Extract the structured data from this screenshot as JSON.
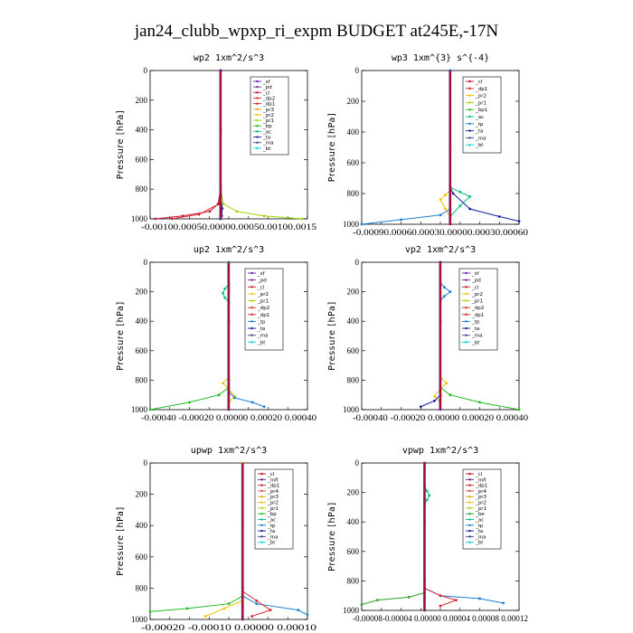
{
  "title": "jan24_clubb_wpxp_ri_expm  BUDGET at245E,-17N",
  "colors": {
    "sf": "#6a1fc0",
    "pd": "#7a1fa0",
    "cl": "#c8102e",
    "dp2": "#e03010",
    "dp1": "#d8202a",
    "pr3": "#f0a000",
    "pr2": "#f2c200",
    "pr1": "#9ad800",
    "bp": "#22bb22",
    "ac": "#00bb88",
    "tp": "#1a7fd0",
    "ta": "#1020a0",
    "ma": "#444488",
    "bt": "#00d8d8",
    "mfl": "#5a2080",
    "pr4": "#e84040",
    "be": "#2ca02c"
  },
  "chart_data": [
    {
      "type": "line",
      "title": "wp2  1xm^2/s^3",
      "ylabel": "Pressure [hPa]",
      "xlim": [
        -0.0013,
        0.0016
      ],
      "ylim": [
        1000,
        0
      ],
      "yticks": [
        0,
        200,
        400,
        600,
        800,
        1000
      ],
      "xtick_text": "-0.00100.00050.00000.00050.00100.0015",
      "legend": [
        "_sf",
        "_pd",
        "_cl",
        "_dp2",
        "_dp1",
        "_pr3",
        "_pr2",
        "_pr1",
        "_bp",
        "_ac",
        "_ta",
        "_ma",
        "_bt"
      ],
      "series": [
        {
          "name": "_sf",
          "color_key": "sf",
          "x": [
            0,
            0,
            0,
            0
          ],
          "y": [
            0,
            400,
            800,
            1000
          ]
        },
        {
          "name": "_cl",
          "color_key": "cl",
          "x": [
            0,
            0,
            -5e-05,
            -0.0002,
            -0.0007,
            -0.0012
          ],
          "y": [
            0,
            800,
            900,
            950,
            980,
            1000
          ]
        },
        {
          "name": "_pr1",
          "color_key": "pr1",
          "x": [
            0,
            0,
            5e-05,
            0.0003,
            0.0008,
            0.0015
          ],
          "y": [
            0,
            800,
            900,
            950,
            980,
            1000
          ]
        },
        {
          "name": "_dp1",
          "color_key": "dp1",
          "x": [
            0,
            0,
            -3e-05,
            -0.0004,
            -0.0009
          ],
          "y": [
            0,
            830,
            900,
            970,
            1000
          ]
        },
        {
          "name": "_ta",
          "color_key": "ta",
          "x": [
            0,
            0,
            3e-05,
            2e-05,
            0
          ],
          "y": [
            0,
            850,
            930,
            980,
            1000
          ]
        }
      ]
    },
    {
      "type": "line",
      "title": "wp3  1xm^{3} s^{-4}",
      "ylabel": "Pressure [hPa]",
      "xlim": [
        -0.0009,
        0.0007
      ],
      "ylim": [
        1000,
        0
      ],
      "yticks": [
        0,
        200,
        400,
        600,
        800,
        1000
      ],
      "xtick_text": "-0.00090.00060.00030.00000.00030.00060",
      "legend": [
        "_cl",
        "_dp1",
        "_pr2",
        "_pr1",
        "_bp1",
        "_ac",
        "_tp",
        "_ta",
        "_ma",
        "_bt"
      ],
      "series": [
        {
          "name": "_cl",
          "color_key": "cl",
          "x": [
            0,
            0,
            0,
            0
          ],
          "y": [
            0,
            500,
            900,
            1000
          ]
        },
        {
          "name": "_ac",
          "color_key": "ac",
          "x": [
            0,
            0,
            0.0001,
            0.0002,
            0.0001,
            0
          ],
          "y": [
            0,
            760,
            790,
            820,
            880,
            950
          ]
        },
        {
          "name": "_pr2",
          "color_key": "pr2",
          "x": [
            0,
            0,
            -5e-05,
            -0.0001,
            -5e-05,
            0
          ],
          "y": [
            0,
            780,
            810,
            840,
            900,
            950
          ]
        },
        {
          "name": "_ta",
          "color_key": "ta",
          "x": [
            0,
            0,
            3e-05,
            0.0002,
            0.0005,
            0.0007
          ],
          "y": [
            0,
            760,
            800,
            900,
            950,
            980
          ]
        },
        {
          "name": "_tp",
          "color_key": "tp",
          "x": [
            0,
            0,
            -0.0001,
            -0.0005,
            -0.0009
          ],
          "y": [
            0,
            900,
            940,
            970,
            1000
          ]
        }
      ]
    },
    {
      "type": "line",
      "title": "up2  1xm^2/s^3",
      "ylabel": "Pressure [hPa]",
      "xlim": [
        -0.0004,
        0.0004
      ],
      "ylim": [
        1000,
        0
      ],
      "yticks": [
        0,
        200,
        400,
        600,
        800,
        1000
      ],
      "xtick_text": "-0.00040 -0.00020  0.00000  0.00020  0.00040",
      "legend": [
        "_sf",
        "_pd",
        "_cl",
        "_pr2",
        "_pr1",
        "_dp2",
        "_dp1",
        "_tp",
        "_ta",
        "_ma",
        "_bt"
      ],
      "series": [
        {
          "name": "_sf",
          "color_key": "sf",
          "x": [
            0,
            0,
            0,
            0
          ],
          "y": [
            0,
            400,
            800,
            1000
          ]
        },
        {
          "name": "_dp1",
          "color_key": "bp",
          "x": [
            0,
            0,
            -5e-05,
            -0.0002,
            -0.0004
          ],
          "y": [
            0,
            850,
            900,
            950,
            1000
          ]
        },
        {
          "name": "_pr2",
          "color_key": "pr2",
          "x": [
            0,
            0,
            -3e-05,
            0,
            3e-05,
            0
          ],
          "y": [
            0,
            780,
            820,
            860,
            910,
            950
          ]
        },
        {
          "name": "_tp",
          "color_key": "tp",
          "x": [
            0,
            0,
            3e-05,
            0.00012,
            0.00018
          ],
          "y": [
            0,
            880,
            920,
            950,
            980
          ]
        },
        {
          "name": "_dp2",
          "color_key": "ac",
          "x": [
            0,
            -2e-05,
            -3e-05,
            -2e-05,
            0
          ],
          "y": [
            150,
            180,
            210,
            240,
            270
          ]
        }
      ]
    },
    {
      "type": "line",
      "title": "vp2  1xm^2/s^3",
      "ylabel": "Pressure [hPa]",
      "xlim": [
        -0.0004,
        0.0004
      ],
      "ylim": [
        1000,
        0
      ],
      "yticks": [
        0,
        200,
        400,
        600,
        800,
        1000
      ],
      "xtick_text": "-0.00040 -0.00020  0.00000  0.00020  0.00040",
      "legend": [
        "_sf",
        "_pd",
        "_cl",
        "_pr2",
        "_pr1",
        "_dp2",
        "_dp1",
        "_tp",
        "_ta",
        "_ma",
        "_bt"
      ],
      "series": [
        {
          "name": "_sf",
          "color_key": "sf",
          "x": [
            0,
            0,
            0,
            0
          ],
          "y": [
            0,
            400,
            800,
            1000
          ]
        },
        {
          "name": "_dp1",
          "color_key": "bp",
          "x": [
            0,
            0,
            5e-05,
            0.0002,
            0.0004
          ],
          "y": [
            0,
            850,
            900,
            950,
            1000
          ]
        },
        {
          "name": "_tp",
          "color_key": "tp",
          "x": [
            0,
            2e-05,
            5e-05,
            2e-05,
            0
          ],
          "y": [
            140,
            170,
            200,
            230,
            260
          ]
        },
        {
          "name": "_pr2",
          "color_key": "pr2",
          "x": [
            0,
            0,
            3e-05,
            0,
            -3e-05,
            0
          ],
          "y": [
            0,
            780,
            820,
            860,
            910,
            950
          ]
        },
        {
          "name": "_ta",
          "color_key": "ta",
          "x": [
            0,
            0,
            -3e-05,
            -0.0001
          ],
          "y": [
            0,
            900,
            940,
            980
          ]
        }
      ]
    },
    {
      "type": "line",
      "title": "upwp  1xm^2/s^3",
      "ylabel": "Pressure [hPa]",
      "xlim": [
        -0.0002,
        0.00014
      ],
      "ylim": [
        1000,
        0
      ],
      "yticks": [
        0,
        200,
        400,
        600,
        800,
        1000
      ],
      "xtick_text": "-0.00020 -0.00010  0.00000  0.00010",
      "legend": [
        "_cl",
        "_mfl",
        "_dp1",
        "_pr4",
        "_pr3",
        "_pr2",
        "_pr1",
        "_bp",
        "_ac",
        "_tp",
        "_ta",
        "_ma",
        "_bt"
      ],
      "series": [
        {
          "name": "_mfl",
          "color_key": "mfl",
          "x": [
            0,
            0,
            0,
            0
          ],
          "y": [
            0,
            400,
            800,
            1000
          ]
        },
        {
          "name": "_bp",
          "color_key": "bp",
          "x": [
            0,
            0,
            -3e-05,
            -0.00012,
            -0.0002
          ],
          "y": [
            0,
            850,
            900,
            930,
            950
          ]
        },
        {
          "name": "_tp",
          "color_key": "tp",
          "x": [
            0,
            0,
            3e-05,
            0.00012,
            0.00014
          ],
          "y": [
            0,
            850,
            900,
            940,
            970
          ]
        },
        {
          "name": "_dp1",
          "color_key": "dp1",
          "x": [
            0,
            0,
            3e-05,
            6e-05,
            2e-05
          ],
          "y": [
            0,
            820,
            880,
            940,
            980
          ]
        },
        {
          "name": "_pr2",
          "color_key": "pr2",
          "x": [
            0,
            0,
            -4e-05,
            -8e-05
          ],
          "y": [
            0,
            880,
            930,
            980
          ]
        }
      ]
    },
    {
      "type": "line",
      "title": "vpwp  1xm^2/s^3",
      "ylabel": "Pressure [hPa]",
      "xlim": [
        -8e-05,
        0.00012
      ],
      "ylim": [
        1000,
        0
      ],
      "yticks": [
        0,
        200,
        400,
        600,
        800,
        1000
      ],
      "xtick_text": "-0.00008-0.00004 0.00000 0.00004 0.00008 0.00012",
      "legend": [
        "_cl",
        "_mfl",
        "_dp1",
        "_pr4",
        "_pr3",
        "_pr2",
        "_pr1",
        "_be",
        "_ac",
        "_tp",
        "_ta",
        "_ma",
        "_bt"
      ],
      "series": [
        {
          "name": "_mfl",
          "color_key": "mfl",
          "x": [
            0,
            0,
            0,
            0
          ],
          "y": [
            0,
            400,
            800,
            1000
          ]
        },
        {
          "name": "_tp",
          "color_key": "tp",
          "x": [
            0,
            0,
            2e-05,
            7e-05,
            0.0001
          ],
          "y": [
            0,
            850,
            900,
            920,
            950
          ]
        },
        {
          "name": "_be",
          "color_key": "be",
          "x": [
            0,
            0,
            -2e-05,
            -6e-05,
            -8e-05
          ],
          "y": [
            0,
            880,
            910,
            930,
            960
          ]
        },
        {
          "name": "_dp1",
          "color_key": "dp1",
          "x": [
            0,
            0,
            2e-05,
            4e-05,
            2e-05
          ],
          "y": [
            0,
            850,
            900,
            930,
            970
          ]
        },
        {
          "name": "_ac",
          "color_key": "ac",
          "x": [
            0,
            3e-06,
            6e-06,
            3e-06,
            0
          ],
          "y": [
            160,
            190,
            220,
            250,
            280
          ]
        }
      ]
    }
  ]
}
